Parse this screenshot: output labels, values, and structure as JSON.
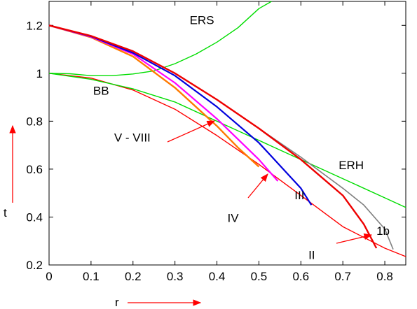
{
  "chart_data": {
    "type": "line",
    "title": "",
    "xlabel": "r",
    "ylabel": "t",
    "xlim": [
      0,
      0.85
    ],
    "ylim": [
      0.2,
      1.3
    ],
    "xticks": [
      "0",
      "0.1",
      "0.2",
      "0.3",
      "0.4",
      "0.5",
      "0.6",
      "0.7",
      "0.8"
    ],
    "yticks": [
      "0.2",
      "0.4",
      "0.6",
      "0.8",
      "1",
      "1.2"
    ],
    "grid": false,
    "series": [
      {
        "name": "BB",
        "color": "#ff0000",
        "x": [
          0,
          0.1,
          0.2,
          0.3,
          0.4,
          0.5,
          0.6,
          0.7,
          0.8,
          0.85
        ],
        "y": [
          1.0,
          0.98,
          0.93,
          0.85,
          0.74,
          0.62,
          0.49,
          0.36,
          0.27,
          0.235
        ]
      },
      {
        "name": "ERS",
        "color": "#00dd00",
        "x": [
          0,
          0.05,
          0.1,
          0.15,
          0.2,
          0.25,
          0.3,
          0.35,
          0.4,
          0.45,
          0.5,
          0.53
        ],
        "y": [
          1.0,
          0.998,
          0.99,
          0.99,
          0.997,
          1.01,
          1.04,
          1.08,
          1.13,
          1.19,
          1.27,
          1.3
        ]
      },
      {
        "name": "ERH",
        "color": "#00dd00",
        "x": [
          0,
          0.1,
          0.2,
          0.3,
          0.4,
          0.5,
          0.6,
          0.7,
          0.8,
          0.85
        ],
        "y": [
          1.0,
          0.975,
          0.935,
          0.88,
          0.8,
          0.72,
          0.64,
          0.56,
          0.48,
          0.44
        ]
      },
      {
        "name": "V - VIII",
        "color": "#ff7a00",
        "x": [
          0,
          0.1,
          0.2,
          0.3,
          0.4,
          0.45,
          0.5
        ],
        "y": [
          1.2,
          1.15,
          1.07,
          0.94,
          0.78,
          0.69,
          0.61
        ]
      },
      {
        "name": "IV",
        "color": "#ff00ff",
        "x": [
          0,
          0.1,
          0.2,
          0.3,
          0.4,
          0.5,
          0.545
        ],
        "y": [
          1.2,
          1.152,
          1.08,
          0.96,
          0.81,
          0.64,
          0.55
        ]
      },
      {
        "name": "III",
        "color": "#0000dd",
        "x": [
          0,
          0.1,
          0.2,
          0.3,
          0.4,
          0.5,
          0.6,
          0.625
        ],
        "y": [
          1.2,
          1.154,
          1.085,
          0.99,
          0.86,
          0.71,
          0.52,
          0.45
        ]
      },
      {
        "name": "II",
        "color": "#ee0000",
        "x": [
          0,
          0.1,
          0.2,
          0.3,
          0.4,
          0.5,
          0.6,
          0.7,
          0.75,
          0.78
        ],
        "y": [
          1.2,
          1.156,
          1.092,
          1.0,
          0.89,
          0.77,
          0.64,
          0.49,
          0.37,
          0.27
        ]
      },
      {
        "name": "1b",
        "color": "#808080",
        "x": [
          0,
          0.1,
          0.2,
          0.3,
          0.4,
          0.5,
          0.6,
          0.7,
          0.75,
          0.8,
          0.82
        ],
        "y": [
          1.2,
          1.156,
          1.092,
          1.0,
          0.89,
          0.77,
          0.65,
          0.52,
          0.45,
          0.35,
          0.265
        ]
      }
    ],
    "annotations": [
      {
        "text": "ERS",
        "x": 0.335,
        "y": 1.205
      },
      {
        "text": "BB",
        "x": 0.105,
        "y": 0.91
      },
      {
        "text": "V - VIII",
        "x": 0.155,
        "y": 0.715
      },
      {
        "text": "IV",
        "x": 0.425,
        "y": 0.38
      },
      {
        "text": "III",
        "x": 0.585,
        "y": 0.475
      },
      {
        "text": "ERH",
        "x": 0.69,
        "y": 0.6
      },
      {
        "text": "II",
        "x": 0.618,
        "y": 0.225
      },
      {
        "text": "1b",
        "x": 0.78,
        "y": 0.325
      }
    ]
  }
}
